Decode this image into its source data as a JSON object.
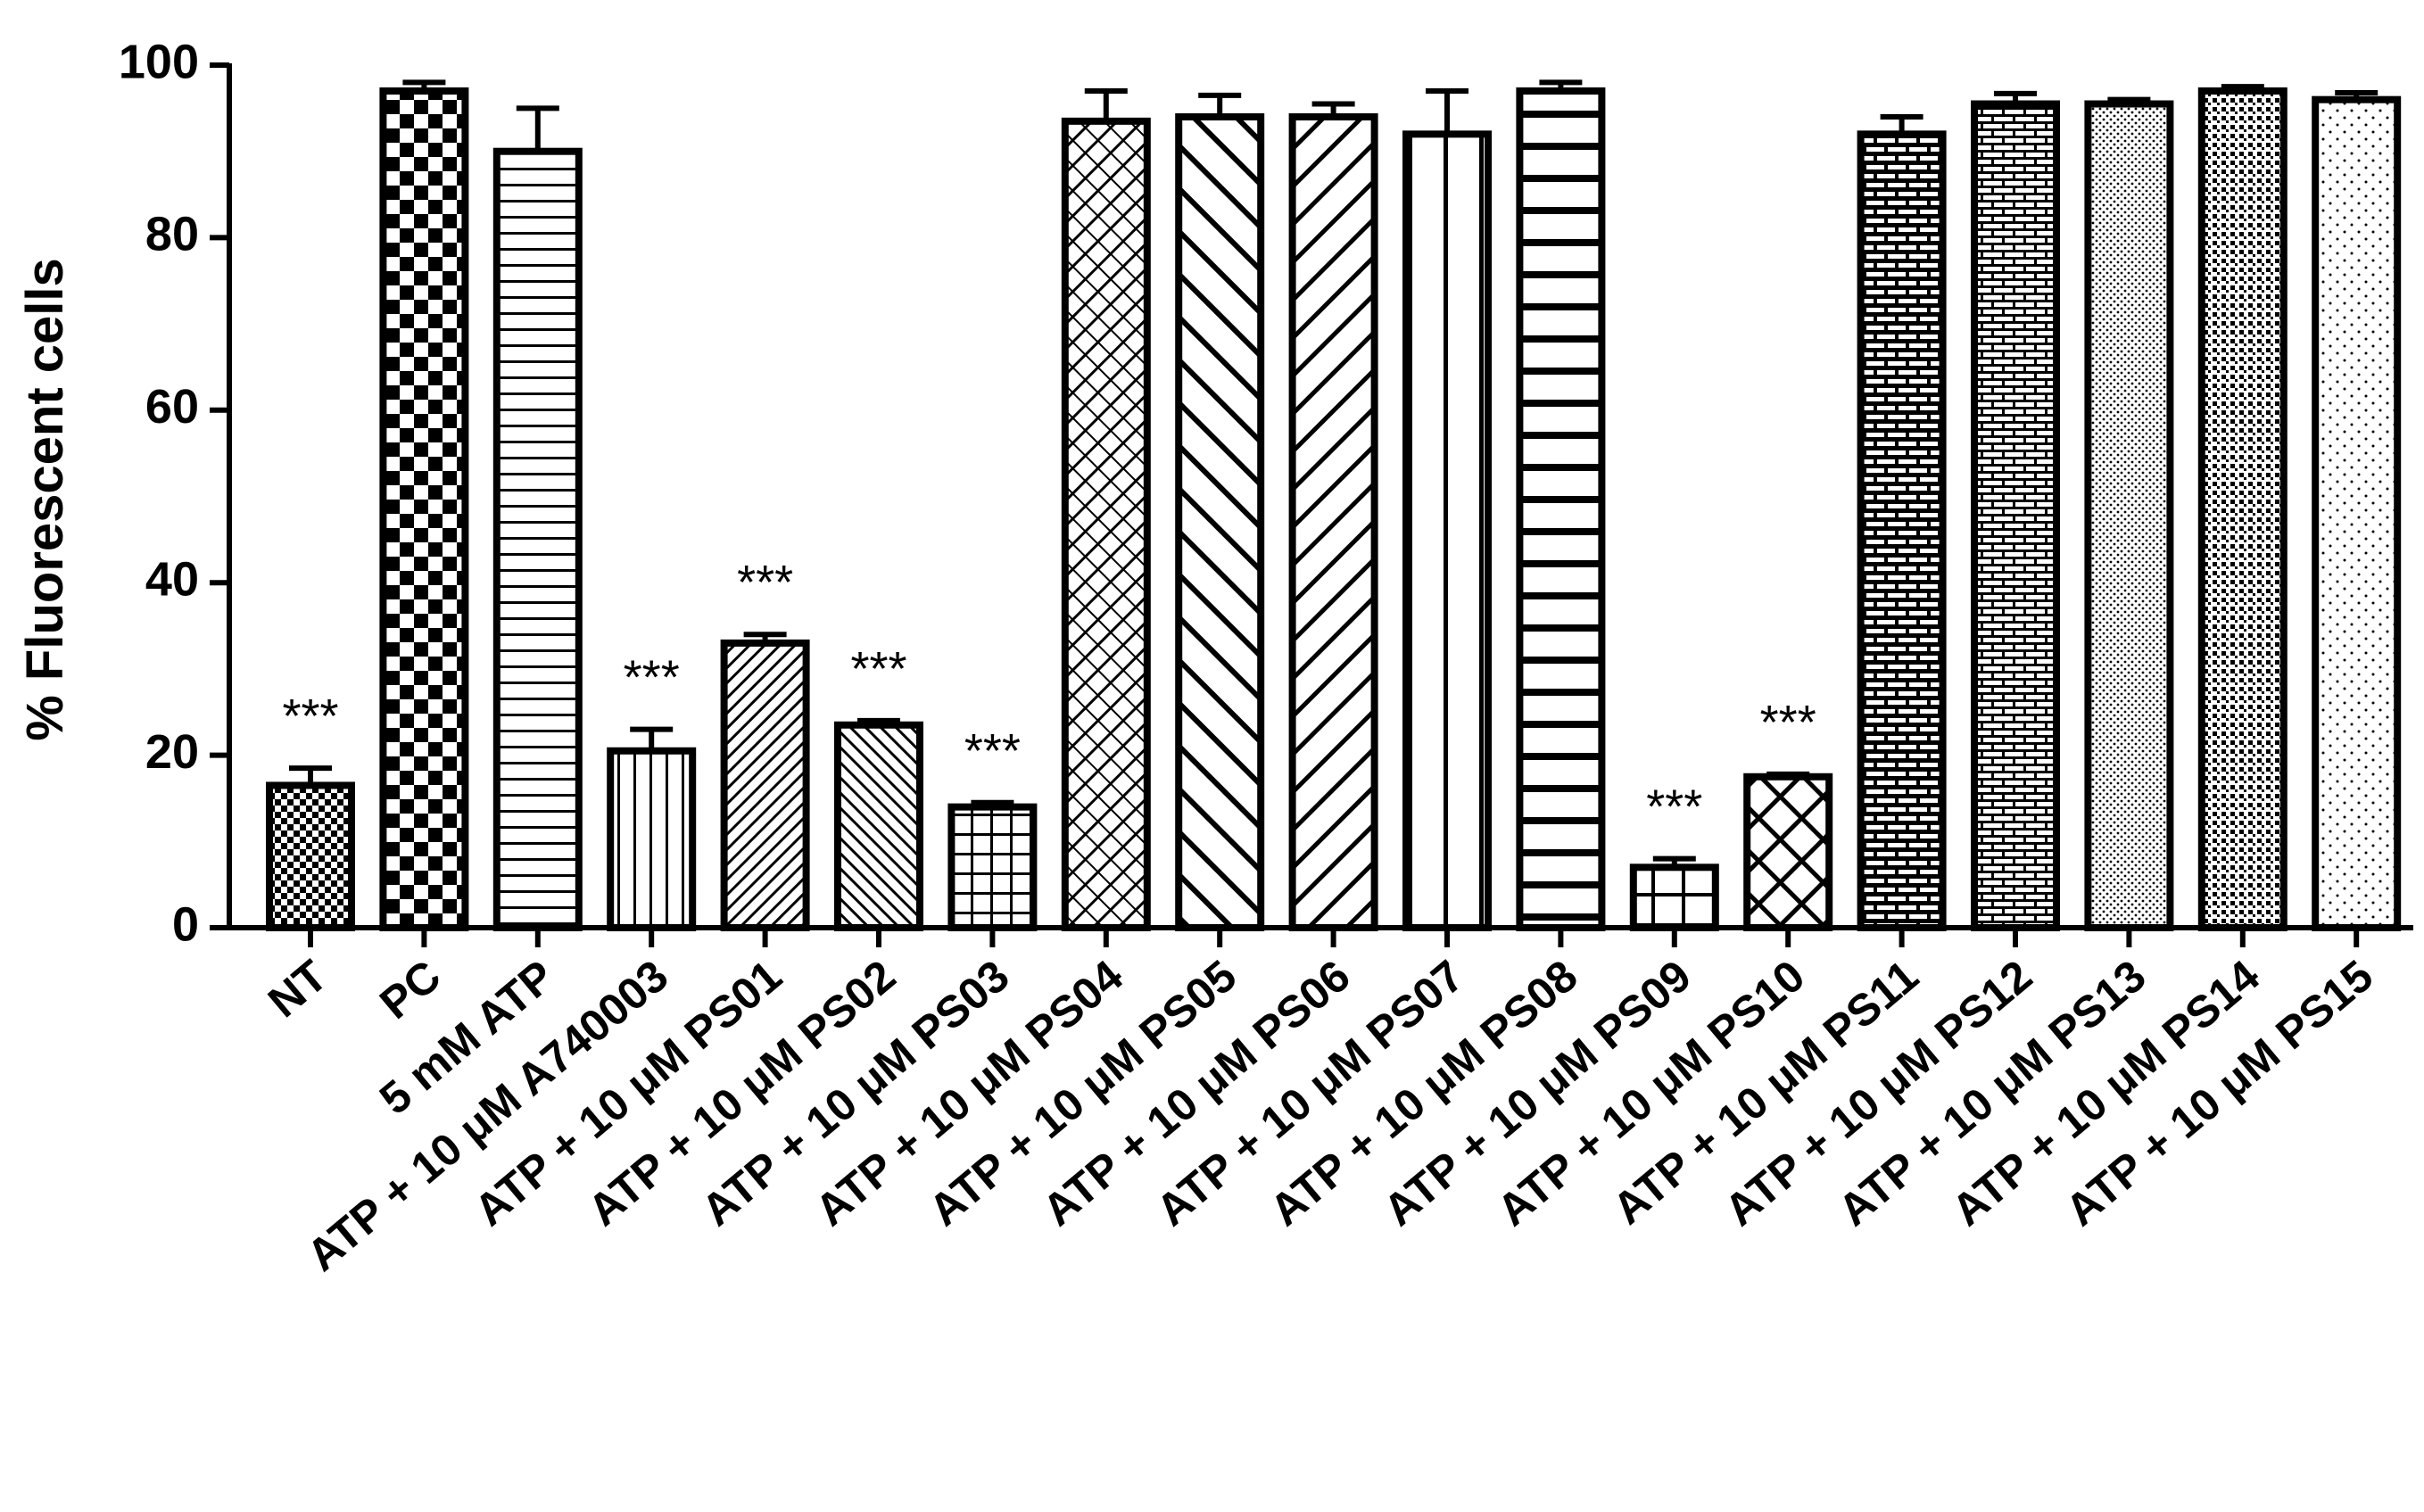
{
  "chart_data": {
    "type": "bar",
    "y_label": "% Fluorescent cells",
    "categories": [
      "NT",
      "PC",
      "5 mM ATP",
      "ATP + 10 μM A740003",
      "ATP + 10 μM PS01",
      "ATP + 10 μM PS02",
      "ATP + 10 μM PS03",
      "ATP + 10 μM PS04",
      "ATP + 10 μM PS05",
      "ATP + 10 μM PS06",
      "ATP + 10 μM PS07",
      "ATP + 10 μM PS08",
      "ATP + 10 μM PS09",
      "ATP + 10 μM PS10",
      "ATP + 10 μM PS11",
      "ATP + 10 μM PS12",
      "ATP + 10 μM PS13",
      "ATP + 10 μM PS14",
      "ATP + 10 μM PS15"
    ],
    "values": [
      16.5,
      97,
      90,
      20.5,
      33,
      23.5,
      14,
      93.5,
      94,
      94,
      92,
      97,
      7,
      17.5,
      92,
      95.5,
      95.5,
      97,
      96
    ],
    "errors": [
      2,
      1,
      5,
      2.5,
      1,
      0.5,
      0.5,
      3.5,
      2.5,
      1.5,
      5,
      1,
      1,
      0.3,
      2,
      1.2,
      0.5,
      0.5,
      0.8
    ],
    "significance": [
      "***",
      null,
      null,
      "***",
      "***",
      "***",
      "***",
      null,
      null,
      null,
      null,
      null,
      "***",
      "***",
      null,
      null,
      null,
      null,
      null
    ],
    "color": "#000000",
    "ylim": [
      0,
      100
    ],
    "yticks": [
      0,
      20,
      40,
      60,
      80,
      100
    ]
  }
}
